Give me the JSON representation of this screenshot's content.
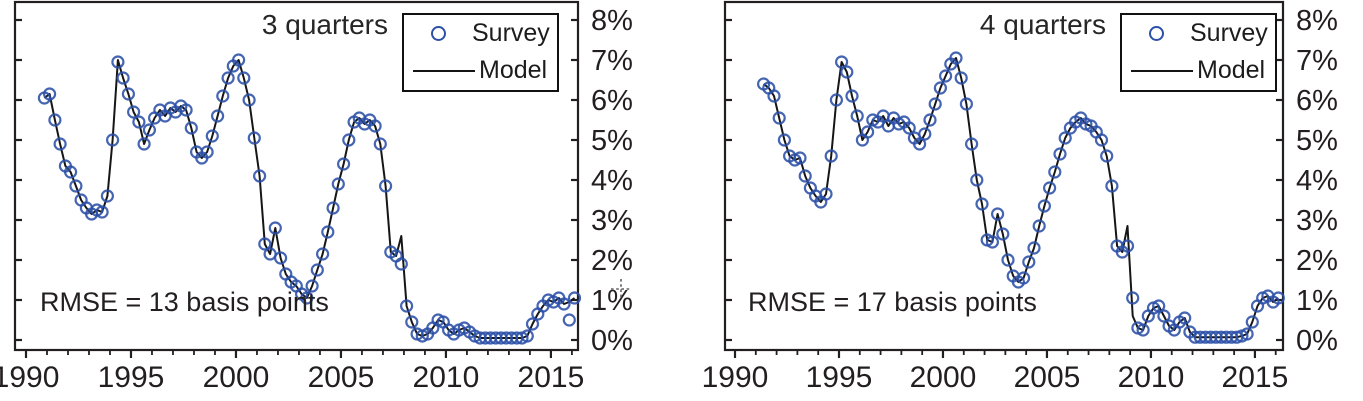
{
  "figure": {
    "colors": {
      "survey_blue": "#2b50a7",
      "model_black": "#161616",
      "axis_black": "#231f20",
      "text_black": "#231f20",
      "background": "#ffffff"
    }
  },
  "chart_data": [
    {
      "type": "scatter",
      "title": "3 quarters",
      "annotation": "RMSE = 13 basis points",
      "legend": {
        "survey_label": "Survey",
        "model_label": "Model"
      },
      "legend_position": "top-right",
      "grid": "off",
      "xlim": [
        1989.476,
        2016.29
      ],
      "ylim": [
        -0.25,
        8.45
      ],
      "x_major_ticks": [
        1990,
        1995,
        2000,
        2005,
        2010,
        2015
      ],
      "x_tick_labels": [
        "1990",
        "1995",
        "2000",
        "2005",
        "2010",
        "2015"
      ],
      "x_minor_step": 1,
      "y_ticks": [
        0,
        1,
        2,
        3,
        4,
        5,
        6,
        7,
        8
      ],
      "y_tick_labels": [
        "0%",
        "1%",
        "2%",
        "3%",
        "4%",
        "5%",
        "6%",
        "7%",
        "8%"
      ],
      "x_start": 1990.875,
      "x_step": 0.25,
      "survey_values": [
        6.05,
        6.15,
        5.5,
        4.9,
        4.35,
        4.2,
        3.85,
        3.5,
        3.3,
        3.15,
        3.25,
        3.2,
        3.6,
        5.0,
        6.95,
        6.55,
        6.15,
        5.7,
        5.45,
        4.9,
        5.25,
        5.55,
        5.75,
        5.6,
        5.8,
        5.7,
        5.85,
        5.75,
        5.3,
        4.7,
        4.55,
        4.7,
        5.1,
        5.6,
        6.1,
        6.55,
        6.85,
        7.0,
        6.55,
        6.0,
        5.05,
        4.1,
        2.4,
        2.15,
        2.8,
        2.05,
        1.65,
        1.45,
        1.35,
        1.15,
        1.05,
        1.35,
        1.75,
        2.15,
        2.7,
        3.3,
        3.9,
        4.4,
        5.0,
        5.45,
        5.55,
        5.4,
        5.5,
        5.35,
        4.9,
        3.85,
        2.2,
        2.1,
        1.9,
        0.85,
        0.45,
        0.15,
        0.1,
        0.15,
        0.3,
        0.5,
        0.45,
        0.25,
        0.15,
        0.25,
        0.3,
        0.2,
        0.1,
        0.05,
        0.05,
        0.05,
        0.05,
        0.05,
        0.05,
        0.05,
        0.05,
        0.05,
        0.1,
        0.4,
        0.65,
        0.85,
        1.0,
        0.95,
        1.05,
        0.9,
        0.5,
        1.05
      ],
      "model_overrides": {
        "1994.375": 7.0,
        "2007.875": 2.6,
        "2015.875": 0.95
      }
    },
    {
      "type": "scatter",
      "title": "4 quarters",
      "annotation": "RMSE = 17 basis points",
      "legend": {
        "survey_label": "Survey",
        "model_label": "Model"
      },
      "legend_position": "top-right",
      "grid": "off",
      "xlim": [
        1989.519,
        2016.35
      ],
      "ylim": [
        -0.25,
        8.45
      ],
      "x_major_ticks": [
        1990,
        1995,
        2000,
        2005,
        2010,
        2015
      ],
      "x_tick_labels": [
        "1990",
        "1995",
        "2000",
        "2005",
        "2010",
        "2015"
      ],
      "x_minor_step": 1,
      "y_ticks": [
        0,
        1,
        2,
        3,
        4,
        5,
        6,
        7,
        8
      ],
      "y_tick_labels": [
        "0%",
        "1%",
        "2%",
        "3%",
        "4%",
        "5%",
        "6%",
        "7%",
        "8%"
      ],
      "x_start": 1991.375,
      "x_step": 0.25,
      "survey_values": [
        6.4,
        6.3,
        6.1,
        5.55,
        5.0,
        4.6,
        4.5,
        4.55,
        4.1,
        3.8,
        3.6,
        3.45,
        3.65,
        4.6,
        6.0,
        6.95,
        6.7,
        6.1,
        5.6,
        5.0,
        5.2,
        5.5,
        5.45,
        5.6,
        5.35,
        5.55,
        5.4,
        5.45,
        5.3,
        5.05,
        4.9,
        5.15,
        5.5,
        5.9,
        6.3,
        6.6,
        6.9,
        7.05,
        6.55,
        5.9,
        4.9,
        4.0,
        3.4,
        2.5,
        2.45,
        3.15,
        2.65,
        2.0,
        1.6,
        1.45,
        1.55,
        1.95,
        2.3,
        2.85,
        3.35,
        3.8,
        4.2,
        4.65,
        5.05,
        5.3,
        5.45,
        5.55,
        5.4,
        5.35,
        5.2,
        5.0,
        4.6,
        3.85,
        2.35,
        2.2,
        2.35,
        1.05,
        0.3,
        0.25,
        0.6,
        0.8,
        0.85,
        0.6,
        0.35,
        0.25,
        0.45,
        0.55,
        0.2,
        0.07,
        0.07,
        0.07,
        0.07,
        0.07,
        0.07,
        0.07,
        0.07,
        0.07,
        0.1,
        0.15,
        0.45,
        0.85,
        1.05,
        1.1,
        0.95,
        1.05
      ],
      "model_overrides": {
        "2008.875": 2.85,
        "2009.125": 0.6
      }
    }
  ],
  "cursor": {
    "type": "precision-crosshair"
  }
}
